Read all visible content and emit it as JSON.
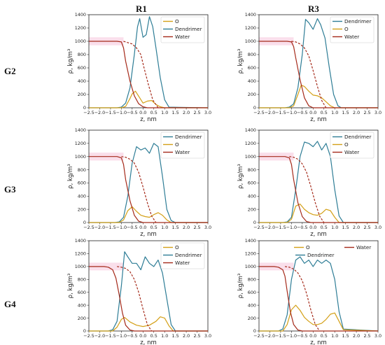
{
  "column_headers": [
    "R1",
    "R3"
  ],
  "row_headers": [
    "G2",
    "G3",
    "G4"
  ],
  "colors": {
    "Dendrimer": "#2e7d96",
    "O": "#d4a017",
    "Water": "#a52a1a",
    "band": "#f3b8d2"
  },
  "chart_data": [
    {
      "type": "line",
      "panel": "G2-R1",
      "xlabel": "z, nm",
      "ylabel": "ρ, kg/m³",
      "xlim": [
        -2.5,
        3.0
      ],
      "ylim": [
        0,
        1400
      ],
      "xticks": [
        "−2.5",
        "−2.0",
        "−1.5",
        "−1.0",
        "−0.5",
        "0.0",
        "0.5",
        "1.0",
        "1.5",
        "2.0",
        "2.5",
        "3.0"
      ],
      "yticks": [
        "0",
        "200",
        "400",
        "600",
        "800",
        "1000",
        "1200",
        "1400"
      ],
      "legend": [
        "O",
        "Dendrimer",
        "Water"
      ],
      "legend_position": "top-right",
      "series": [
        {
          "name": "Dendrimer",
          "x": [
            -2.5,
            -1.2,
            -1.0,
            -0.8,
            -0.6,
            -0.4,
            -0.25,
            -0.15,
            0.0,
            0.15,
            0.3,
            0.45,
            0.6,
            0.8,
            1.0,
            1.2,
            3.0
          ],
          "y": [
            0,
            0,
            10,
            70,
            300,
            800,
            1220,
            1340,
            1060,
            1100,
            1370,
            1220,
            900,
            450,
            120,
            10,
            0
          ]
        },
        {
          "name": "O",
          "x": [
            -2.5,
            -1.0,
            -0.8,
            -0.6,
            -0.5,
            -0.35,
            -0.15,
            0.0,
            0.2,
            0.4,
            0.6,
            0.8,
            1.0,
            3.0
          ],
          "y": [
            0,
            0,
            20,
            140,
            210,
            250,
            150,
            70,
            100,
            110,
            50,
            15,
            0,
            0
          ]
        },
        {
          "name": "Water",
          "x": [
            -2.5,
            -1.5,
            -1.2,
            -1.0,
            -0.9,
            -0.8,
            -0.6,
            -0.4,
            -0.2,
            0.0,
            0.2,
            3.0
          ],
          "y": [
            1000,
            1000,
            1000,
            990,
            900,
            700,
            400,
            180,
            60,
            15,
            0,
            0
          ]
        },
        {
          "name": "Water (dashed)",
          "x": [
            -0.9,
            -0.7,
            -0.5,
            -0.3,
            -0.1,
            0.05,
            0.25,
            0.45,
            0.7
          ],
          "y": [
            1000,
            980,
            960,
            900,
            800,
            600,
            350,
            120,
            0
          ]
        }
      ]
    },
    {
      "type": "line",
      "panel": "G2-R3",
      "xlabel": "z, nm",
      "ylabel": "ρ, kg/m³",
      "xlim": [
        -2.5,
        3.0
      ],
      "ylim": [
        0,
        1400
      ],
      "xticks": [
        "−2.5",
        "−2.0",
        "−1.5",
        "−1.0",
        "−0.5",
        "0.0",
        "0.5",
        "1.0",
        "1.5",
        "2.0",
        "2.5",
        "3.0"
      ],
      "yticks": [
        "0",
        "200",
        "400",
        "600",
        "800",
        "1000",
        "1200",
        "1400"
      ],
      "legend": [
        "Dendrimer",
        "O",
        "Water"
      ],
      "legend_position": "top-right",
      "series": [
        {
          "name": "Dendrimer",
          "x": [
            -2.5,
            -1.3,
            -1.1,
            -0.9,
            -0.7,
            -0.5,
            -0.35,
            -0.2,
            0.0,
            0.2,
            0.35,
            0.55,
            0.75,
            0.95,
            1.15,
            1.3,
            3.0
          ],
          "y": [
            0,
            0,
            10,
            60,
            300,
            800,
            1330,
            1280,
            1180,
            1340,
            1250,
            1050,
            600,
            200,
            30,
            0,
            0
          ]
        },
        {
          "name": "O",
          "x": [
            -2.5,
            -1.1,
            -0.9,
            -0.7,
            -0.55,
            -0.4,
            -0.2,
            0.0,
            0.2,
            0.4,
            0.6,
            0.8,
            1.0,
            3.0
          ],
          "y": [
            0,
            0,
            30,
            200,
            340,
            320,
            250,
            190,
            180,
            150,
            90,
            30,
            0,
            0
          ]
        },
        {
          "name": "Water",
          "x": [
            -2.5,
            -1.5,
            -1.2,
            -1.0,
            -0.9,
            -0.8,
            -0.6,
            -0.4,
            -0.2,
            0.0,
            3.0
          ],
          "y": [
            1000,
            1000,
            1000,
            990,
            920,
            750,
            420,
            150,
            30,
            0,
            0
          ]
        },
        {
          "name": "Water (dashed)",
          "x": [
            -1.0,
            -0.8,
            -0.6,
            -0.4,
            -0.2,
            0.0,
            0.2,
            0.4,
            0.6
          ],
          "y": [
            1000,
            990,
            960,
            900,
            780,
            560,
            320,
            110,
            0
          ]
        }
      ]
    },
    {
      "type": "line",
      "panel": "G3-R1",
      "xlabel": "z, nm",
      "ylabel": "ρ, kg/m³",
      "xlim": [
        -2.5,
        3.0
      ],
      "ylim": [
        0,
        1400
      ],
      "xticks": [
        "−2.5",
        "−2.0",
        "−1.5",
        "−1.0",
        "−0.5",
        "0.0",
        "0.5",
        "1.0",
        "1.5",
        "2.0",
        "2.5",
        "3.0"
      ],
      "yticks": [
        "0",
        "200",
        "400",
        "600",
        "800",
        "1000",
        "1200",
        "1400"
      ],
      "legend": [
        "Dendrimer",
        "O",
        "Water"
      ],
      "legend_position": "top-right",
      "series": [
        {
          "name": "Dendrimer",
          "x": [
            -2.5,
            -1.3,
            -1.1,
            -0.9,
            -0.7,
            -0.5,
            -0.3,
            -0.1,
            0.1,
            0.3,
            0.5,
            0.7,
            0.9,
            1.1,
            1.3,
            1.5,
            3.0
          ],
          "y": [
            0,
            0,
            10,
            80,
            400,
            900,
            1150,
            1100,
            1130,
            1050,
            1200,
            1150,
            700,
            200,
            30,
            0,
            0
          ]
        },
        {
          "name": "O",
          "x": [
            -2.5,
            -1.1,
            -0.9,
            -0.7,
            -0.5,
            -0.3,
            -0.1,
            0.1,
            0.3,
            0.5,
            0.7,
            0.9,
            1.1,
            1.3,
            3.0
          ],
          "y": [
            0,
            0,
            40,
            180,
            240,
            170,
            110,
            90,
            80,
            120,
            150,
            110,
            40,
            0,
            0
          ]
        },
        {
          "name": "Water",
          "x": [
            -2.5,
            -1.5,
            -1.2,
            -1.0,
            -0.9,
            -0.8,
            -0.6,
            -0.4,
            -0.2,
            0.0,
            3.0
          ],
          "y": [
            1000,
            1000,
            1000,
            980,
            880,
            650,
            330,
            110,
            20,
            0,
            0
          ]
        },
        {
          "name": "Water (dashed)",
          "x": [
            -1.0,
            -0.8,
            -0.6,
            -0.4,
            -0.2,
            0.0,
            0.2,
            0.4,
            0.6
          ],
          "y": [
            1000,
            990,
            960,
            900,
            760,
            540,
            300,
            100,
            0
          ]
        }
      ]
    },
    {
      "type": "line",
      "panel": "G3-R3",
      "xlabel": "z, nm",
      "ylabel": "ρ, kg/m³",
      "xlim": [
        -2.5,
        3.0
      ],
      "ylim": [
        0,
        1400
      ],
      "xticks": [
        "−2.5",
        "−2.0",
        "−1.5",
        "−1.0",
        "−0.5",
        "0.0",
        "0.5",
        "1.0",
        "1.5",
        "2.0",
        "2.5",
        "3.0"
      ],
      "yticks": [
        "0",
        "200",
        "400",
        "600",
        "800",
        "1000",
        "1200",
        "1400"
      ],
      "legend": [
        "Dendrimer",
        "O",
        "Water"
      ],
      "legend_position": "top-right",
      "series": [
        {
          "name": "Dendrimer",
          "x": [
            -2.5,
            -1.4,
            -1.2,
            -1.0,
            -0.8,
            -0.6,
            -0.4,
            -0.2,
            0.0,
            0.2,
            0.4,
            0.6,
            0.8,
            1.0,
            1.2,
            1.4,
            3.0
          ],
          "y": [
            0,
            0,
            10,
            80,
            500,
            1000,
            1220,
            1200,
            1150,
            1230,
            1100,
            1200,
            1000,
            500,
            100,
            0,
            0
          ]
        },
        {
          "name": "O",
          "x": [
            -2.5,
            -1.2,
            -1.0,
            -0.8,
            -0.6,
            -0.4,
            -0.2,
            0.0,
            0.2,
            0.4,
            0.6,
            0.8,
            1.0,
            1.2,
            3.0
          ],
          "y": [
            0,
            0,
            50,
            250,
            280,
            200,
            150,
            120,
            110,
            140,
            200,
            180,
            80,
            0,
            0
          ]
        },
        {
          "name": "Water",
          "x": [
            -2.5,
            -1.5,
            -1.3,
            -1.1,
            -1.0,
            -0.9,
            -0.7,
            -0.5,
            -0.3,
            -0.1,
            3.0
          ],
          "y": [
            1000,
            1000,
            1000,
            980,
            880,
            650,
            300,
            90,
            15,
            0,
            0
          ]
        },
        {
          "name": "Water (dashed)",
          "x": [
            -1.1,
            -0.9,
            -0.7,
            -0.5,
            -0.3,
            -0.1,
            0.1,
            0.3,
            0.5
          ],
          "y": [
            1000,
            990,
            960,
            890,
            760,
            540,
            300,
            100,
            0
          ]
        }
      ]
    },
    {
      "type": "line",
      "panel": "G4-R1",
      "xlabel": "z, nm",
      "ylabel": "ρ, kg/m³",
      "xlim": [
        -2.5,
        3.0
      ],
      "ylim": [
        0,
        1400
      ],
      "xticks": [
        "−2.5",
        "−2.0",
        "−1.5",
        "−1.0",
        "−0.5",
        "0.0",
        "0.5",
        "1.0",
        "1.5",
        "2.0",
        "2.5",
        "3.0"
      ],
      "yticks": [
        "0",
        "200",
        "400",
        "600",
        "800",
        "1000",
        "1200",
        "1400"
      ],
      "legend": [
        "O",
        "Dendrimer",
        "Water"
      ],
      "legend_position": "top-right",
      "series": [
        {
          "name": "Dendrimer",
          "x": [
            -2.5,
            -1.6,
            -1.4,
            -1.2,
            -1.0,
            -0.85,
            -0.7,
            -0.5,
            -0.3,
            -0.1,
            0.1,
            0.3,
            0.5,
            0.7,
            0.9,
            1.1,
            1.3,
            1.5,
            3.0
          ],
          "y": [
            0,
            0,
            20,
            150,
            700,
            1230,
            1150,
            1050,
            1050,
            950,
            1150,
            1050,
            1000,
            1100,
            900,
            500,
            100,
            0,
            0
          ]
        },
        {
          "name": "O",
          "x": [
            -2.5,
            -1.4,
            -1.2,
            -1.0,
            -0.85,
            -0.6,
            -0.3,
            0.0,
            0.3,
            0.6,
            0.8,
            1.0,
            1.2,
            1.4,
            3.0
          ],
          "y": [
            0,
            0,
            60,
            180,
            210,
            140,
            90,
            70,
            90,
            150,
            220,
            200,
            80,
            0,
            0
          ]
        },
        {
          "name": "Water",
          "x": [
            -2.5,
            -1.8,
            -1.6,
            -1.4,
            -1.25,
            -1.1,
            -0.95,
            -0.8,
            -0.6,
            -0.4,
            3.0
          ],
          "y": [
            1000,
            1000,
            990,
            950,
            820,
            560,
            280,
            90,
            15,
            0,
            0
          ]
        },
        {
          "name": "Water (dashed)",
          "x": [
            -1.2,
            -1.0,
            -0.8,
            -0.6,
            -0.4,
            -0.2,
            0.0,
            0.2,
            0.4
          ],
          "y": [
            1000,
            990,
            970,
            920,
            800,
            600,
            340,
            100,
            0
          ]
        }
      ]
    },
    {
      "type": "line",
      "panel": "G4-R3",
      "xlabel": "z, nm",
      "ylabel": "ρ, kg/m³",
      "xlim": [
        -2.5,
        3.0
      ],
      "ylim": [
        0,
        1400
      ],
      "xticks": [
        "−2.5",
        "−2.0",
        "−1.5",
        "−1.0",
        "−0.5",
        "0.0",
        "0.5",
        "1.0",
        "1.5",
        "2.0",
        "2.5",
        "3.0"
      ],
      "yticks": [
        "0",
        "200",
        "400",
        "600",
        "800",
        "1000",
        "1200",
        "1400"
      ],
      "legend": [
        "O",
        "Dendrimer",
        "Water"
      ],
      "legend_position": "top",
      "series": [
        {
          "name": "Dendrimer",
          "x": [
            -2.5,
            -1.6,
            -1.4,
            -1.2,
            -1.0,
            -0.8,
            -0.6,
            -0.4,
            -0.2,
            0.0,
            0.2,
            0.4,
            0.6,
            0.8,
            1.0,
            1.2,
            1.4,
            3.0
          ],
          "y": [
            0,
            0,
            30,
            250,
            800,
            1100,
            1150,
            1050,
            1100,
            1000,
            1100,
            1050,
            1100,
            1050,
            800,
            300,
            30,
            0
          ]
        },
        {
          "name": "O",
          "x": [
            -2.5,
            -1.4,
            -1.2,
            -1.0,
            -0.8,
            -0.6,
            -0.4,
            -0.2,
            0.0,
            0.2,
            0.4,
            0.6,
            0.8,
            1.0,
            1.2,
            1.4,
            3.0
          ],
          "y": [
            0,
            0,
            100,
            330,
            400,
            320,
            210,
            150,
            100,
            100,
            120,
            180,
            260,
            280,
            150,
            20,
            0
          ]
        },
        {
          "name": "Water",
          "x": [
            -2.5,
            -1.8,
            -1.6,
            -1.4,
            -1.3,
            -1.2,
            -1.05,
            -0.9,
            -0.7,
            -0.5,
            3.0
          ],
          "y": [
            1000,
            1000,
            990,
            950,
            850,
            620,
            300,
            100,
            15,
            0,
            0
          ]
        },
        {
          "name": "Water (dashed)",
          "x": [
            -1.3,
            -1.1,
            -0.9,
            -0.7,
            -0.5,
            -0.3,
            -0.1,
            0.1,
            0.3
          ],
          "y": [
            1000,
            990,
            960,
            900,
            780,
            580,
            320,
            100,
            0
          ]
        }
      ]
    }
  ]
}
